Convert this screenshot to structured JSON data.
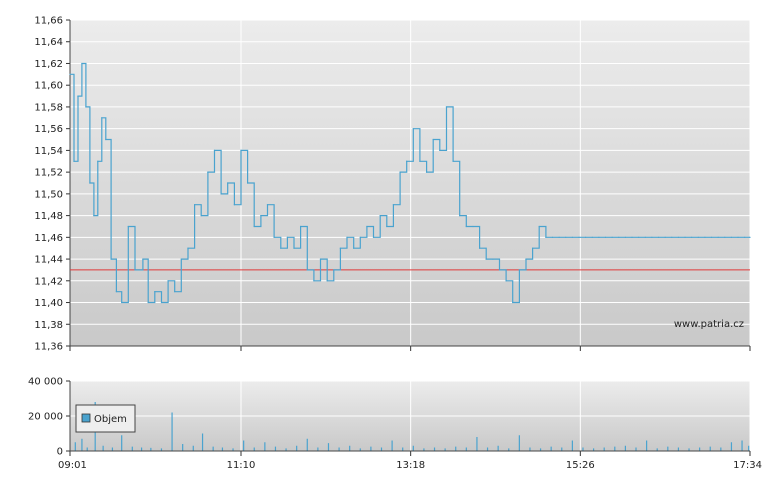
{
  "chart_data": [
    {
      "type": "line",
      "title": "",
      "xlabel": "",
      "ylabel": "",
      "ylim": [
        11.36,
        11.66
      ],
      "y_ticks": [
        "11,36",
        "11,38",
        "11,40",
        "11,42",
        "11,44",
        "11,46",
        "11,48",
        "11,50",
        "11,52",
        "11,54",
        "11,56",
        "11,58",
        "11,60",
        "11,62",
        "11,64",
        "11,66"
      ],
      "x_ticks": [
        "09:01",
        "11:10",
        "13:18",
        "15:26",
        "17:34"
      ],
      "x_range_minutes": [
        541,
        1054
      ],
      "grid": true,
      "reference_line": {
        "value": 11.43,
        "color": "#e03a3a"
      },
      "line_color": "#4aa3cf",
      "watermark": "www.patria.cz",
      "series": [
        {
          "x": [
            "09:01",
            "09:04",
            "09:07",
            "09:10",
            "09:13",
            "09:16",
            "09:19",
            "09:22",
            "09:25",
            "09:28",
            "09:32",
            "09:36",
            "09:40",
            "09:45",
            "09:50",
            "09:56",
            "10:00",
            "10:05",
            "10:10",
            "10:15",
            "10:20",
            "10:25",
            "10:30",
            "10:35",
            "10:40",
            "10:45",
            "10:50",
            "10:55",
            "11:00",
            "11:05",
            "11:10",
            "11:15",
            "11:20",
            "11:25",
            "11:30",
            "11:35",
            "11:40",
            "11:45",
            "11:50",
            "11:55",
            "12:00",
            "12:05",
            "12:10",
            "12:15",
            "12:20",
            "12:25",
            "12:30",
            "12:35",
            "12:40",
            "12:45",
            "12:50",
            "12:55",
            "13:00",
            "13:05",
            "13:10",
            "13:15",
            "13:20",
            "13:25",
            "13:30",
            "13:35",
            "13:40",
            "13:45",
            "13:50",
            "13:55",
            "14:00",
            "14:05",
            "14:10",
            "14:15",
            "14:20",
            "14:25",
            "14:30",
            "14:35",
            "14:40",
            "14:45",
            "14:50",
            "14:55",
            "15:00",
            "15:05",
            "15:10",
            "15:15",
            "15:20",
            "15:25",
            "15:30",
            "15:35",
            "15:40",
            "15:45",
            "15:50",
            "15:55",
            "16:00",
            "16:05",
            "16:10",
            "16:15",
            "16:20",
            "16:25",
            "16:30",
            "16:35",
            "16:40",
            "16:45",
            "16:50",
            "16:55",
            "17:00",
            "17:05",
            "17:10",
            "17:15",
            "17:20",
            "17:25",
            "17:30",
            "17:34"
          ],
          "values": [
            11.61,
            11.53,
            11.59,
            11.62,
            11.58,
            11.51,
            11.48,
            11.53,
            11.57,
            11.55,
            11.44,
            11.41,
            11.4,
            11.47,
            11.43,
            11.44,
            11.4,
            11.41,
            11.4,
            11.42,
            11.41,
            11.44,
            11.45,
            11.49,
            11.48,
            11.52,
            11.54,
            11.5,
            11.51,
            11.49,
            11.54,
            11.51,
            11.47,
            11.48,
            11.49,
            11.46,
            11.45,
            11.46,
            11.45,
            11.47,
            11.43,
            11.42,
            11.44,
            11.42,
            11.43,
            11.45,
            11.46,
            11.45,
            11.46,
            11.47,
            11.46,
            11.48,
            11.47,
            11.49,
            11.52,
            11.53,
            11.56,
            11.53,
            11.52,
            11.55,
            11.54,
            11.58,
            11.53,
            11.48,
            11.47,
            11.47,
            11.45,
            11.44,
            11.44,
            11.43,
            11.42,
            11.4,
            11.43,
            11.44,
            11.45,
            11.47,
            11.46,
            11.46,
            11.46,
            11.46,
            11.46,
            11.46,
            11.46,
            11.46,
            11.46,
            11.46,
            11.46,
            11.46,
            11.46,
            11.46,
            11.46,
            11.46,
            11.46,
            11.46,
            11.46,
            11.46,
            11.46,
            11.46,
            11.46,
            11.46,
            11.46,
            11.46,
            11.46,
            11.46,
            11.46,
            11.46,
            11.46,
            11.46
          ]
        }
      ]
    },
    {
      "type": "bar",
      "title": "",
      "xlabel": "",
      "ylabel": "",
      "ylim": [
        0,
        40000
      ],
      "y_ticks": [
        "0",
        "20 000",
        "40 000"
      ],
      "x_ticks": [
        "09:01",
        "11:10",
        "13:18",
        "15:26",
        "17:34"
      ],
      "x_range_minutes": [
        541,
        1054
      ],
      "grid": true,
      "legend": {
        "label": "Objem",
        "placement": "left",
        "color": "#4aa3cf"
      },
      "series": [
        {
          "name": "Objem",
          "x": [
            "09:05",
            "09:10",
            "09:14",
            "09:20",
            "09:26",
            "09:33",
            "09:40",
            "09:48",
            "09:55",
            "10:02",
            "10:10",
            "10:18",
            "10:26",
            "10:34",
            "10:41",
            "10:49",
            "10:56",
            "11:04",
            "11:12",
            "11:20",
            "11:28",
            "11:36",
            "11:44",
            "11:52",
            "12:00",
            "12:08",
            "12:16",
            "12:24",
            "12:32",
            "12:40",
            "12:48",
            "12:56",
            "13:04",
            "13:12",
            "13:20",
            "13:28",
            "13:36",
            "13:44",
            "13:52",
            "14:00",
            "14:08",
            "14:16",
            "14:24",
            "14:32",
            "14:40",
            "14:48",
            "14:56",
            "15:04",
            "15:12",
            "15:20",
            "15:28",
            "15:36",
            "15:44",
            "15:52",
            "16:00",
            "16:08",
            "16:16",
            "16:24",
            "16:32",
            "16:40",
            "16:48",
            "16:56",
            "17:04",
            "17:12",
            "17:20",
            "17:28",
            "17:33"
          ],
          "values": [
            5000,
            7000,
            2000,
            28000,
            3000,
            2000,
            9000,
            2500,
            2000,
            1800,
            1500,
            22000,
            4000,
            3000,
            10000,
            2500,
            2000,
            1500,
            6000,
            2000,
            5000,
            2500,
            1500,
            3000,
            7000,
            2000,
            4500,
            2000,
            3000,
            1500,
            2500,
            2000,
            6000,
            2000,
            3000,
            1500,
            2000,
            1500,
            2500,
            2000,
            8000,
            2000,
            3000,
            1500,
            9000,
            2000,
            1500,
            2500,
            2000,
            6000,
            2000,
            1500,
            2000,
            2500,
            3000,
            2000,
            6000,
            1500,
            2500,
            2000,
            1500,
            2000,
            2500,
            2000,
            5000,
            6000,
            3000
          ]
        }
      ]
    }
  ]
}
